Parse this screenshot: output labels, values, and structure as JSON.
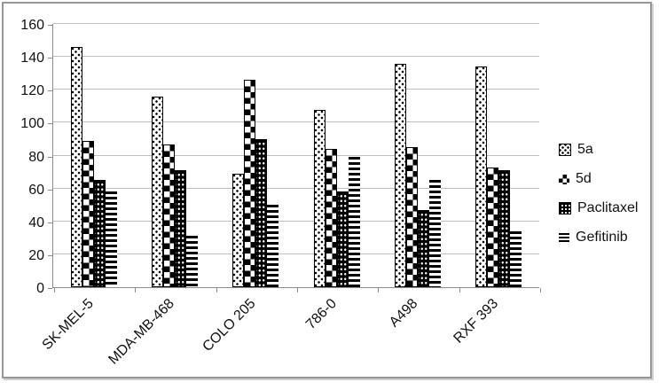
{
  "chart_data": {
    "type": "bar",
    "title": "",
    "xlabel": "",
    "ylabel": "",
    "categories": [
      "SK-MEL-5",
      "MDA-MB-468",
      "COLO 205",
      "786-0",
      "A498",
      "RXF 393"
    ],
    "series": [
      {
        "name": "5a",
        "pattern": "sparse-black-dots-on-white",
        "values": [
          146,
          116,
          69,
          108,
          136,
          134
        ]
      },
      {
        "name": "5d",
        "pattern": "checkerboard",
        "values": [
          89,
          87,
          126,
          84,
          85,
          73
        ]
      },
      {
        "name": "Paclitaxel",
        "pattern": "white-dots-on-black",
        "values": [
          65,
          71,
          90,
          58,
          47,
          71
        ]
      },
      {
        "name": "Gefitinib",
        "pattern": "horizontal-stripes",
        "values": [
          58,
          31,
          50,
          79,
          65,
          34
        ]
      }
    ],
    "ylim": [
      0,
      160
    ],
    "yticks": [
      0,
      20,
      40,
      60,
      80,
      100,
      120,
      140,
      160
    ],
    "grid": true,
    "legend_position": "right",
    "colors": {
      "foreground": "#000000",
      "gridline": "#bdbdbd",
      "axis": "#8c8c8c",
      "frame_border": "#979797"
    }
  }
}
